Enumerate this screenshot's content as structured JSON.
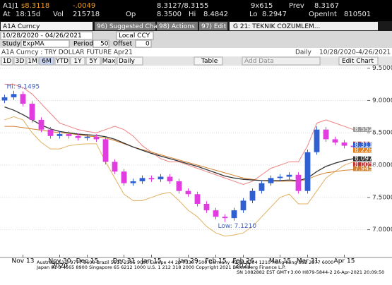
{
  "header": {
    "ticker": "A1J1",
    "last": "s8.3118",
    "change": "-.0049",
    "bid_ask": "8.3127/8.3155",
    "size": "9x615",
    "prev_label": "Prev",
    "prev": "8.3167",
    "time_label": "At",
    "time": "18:15d",
    "vol_label": "Vol",
    "vol": "215718",
    "open_label": "Op",
    "open": "8.3500",
    "hi_label": "Hi",
    "hi": "8.4842",
    "lo_label": "Lo",
    "lo": "8.2947",
    "oi_label": "OpenInt",
    "oi": "810501"
  },
  "toolbar": {
    "security": "A1A Curncy",
    "buttons": [
      "96) Suggested Charts",
      "98) Actions",
      "97) Edit"
    ],
    "template": "G 21: TEKNIK COZUMLEM...",
    "date_range": "10/28/2020 - 04/26/2021",
    "currency": "Local CCY",
    "study_label": "Study",
    "study": "ExpMA",
    "period_label": "Period",
    "period": "50",
    "offset_label": "Offset",
    "offset": "0"
  },
  "chart_header": {
    "description": "A1A Curncy : TRY DOLLAR FUTURE Apr21",
    "frequency": "Daily",
    "range": "10/28/2020-4/26/2021"
  },
  "chart_tools": {
    "periods": [
      "1D",
      "3D",
      "1M",
      "6M",
      "YTD",
      "1Y",
      "5Y",
      "Max"
    ],
    "frequency": "Daily",
    "table": "Table",
    "add_data": "Add Data",
    "edit": "Edit Chart"
  },
  "chart": {
    "type": "candlestick",
    "categories": [
      null,
      null,
      "Nov 13",
      null,
      null,
      null,
      "Nov 30",
      null,
      null,
      "Dec 15",
      null,
      null,
      null,
      "Dec 31",
      null,
      null,
      "Jan 15",
      null,
      null,
      null,
      "Jan 29",
      null,
      null,
      "Feb 15",
      null,
      null,
      "Feb 26",
      null,
      null,
      null,
      "Mar 15",
      null,
      null,
      "Mar 31",
      null,
      null,
      null,
      "Apr 15",
      null,
      null
    ],
    "year_categories": [
      null,
      null,
      null,
      null,
      null,
      null,
      "2020",
      null,
      null,
      null,
      null,
      null,
      null,
      null,
      null,
      null,
      null,
      null,
      null,
      null,
      null,
      null,
      null,
      null,
      null,
      null,
      "2021",
      null,
      null,
      null,
      null,
      null,
      null,
      null,
      null,
      null,
      null,
      null,
      null,
      null
    ],
    "open": [
      9.0,
      9.05,
      9.1,
      8.95,
      8.7,
      8.55,
      8.45,
      8.48,
      8.45,
      8.42,
      8.44,
      8.4,
      8.05,
      7.9,
      7.72,
      7.75,
      7.8,
      7.78,
      7.82,
      7.75,
      7.6,
      7.55,
      7.4,
      7.3,
      7.2,
      7.18,
      7.3,
      7.45,
      7.6,
      7.72,
      7.8,
      7.82,
      7.85,
      7.6,
      8.2,
      8.55,
      8.4,
      8.35,
      8.3,
      8.28
    ],
    "high": [
      9.09,
      9.1495,
      9.14,
      8.99,
      8.74,
      8.59,
      8.52,
      8.52,
      8.49,
      8.48,
      8.48,
      8.44,
      8.09,
      7.94,
      7.79,
      7.84,
      7.84,
      7.86,
      7.86,
      7.79,
      7.64,
      7.59,
      7.44,
      7.34,
      7.24,
      7.34,
      7.49,
      7.64,
      7.76,
      7.84,
      7.86,
      7.89,
      7.89,
      8.24,
      8.6,
      8.59,
      8.44,
      8.39,
      8.34,
      8.35
    ],
    "low": [
      8.96,
      9.01,
      8.91,
      8.66,
      8.51,
      8.41,
      8.41,
      8.41,
      8.38,
      8.38,
      8.36,
      8.01,
      7.86,
      7.68,
      7.68,
      7.71,
      7.74,
      7.74,
      7.71,
      7.56,
      7.51,
      7.36,
      7.26,
      7.16,
      7.121,
      7.14,
      7.26,
      7.41,
      7.56,
      7.68,
      7.76,
      7.78,
      7.56,
      7.56,
      8.16,
      8.36,
      8.31,
      8.26,
      8.24,
      8.24
    ],
    "close": [
      9.05,
      9.1,
      8.95,
      8.7,
      8.55,
      8.45,
      8.48,
      8.45,
      8.42,
      8.44,
      8.4,
      8.05,
      7.9,
      7.72,
      7.75,
      7.8,
      7.78,
      7.82,
      7.75,
      7.6,
      7.55,
      7.4,
      7.3,
      7.2,
      7.18,
      7.3,
      7.45,
      7.6,
      7.72,
      7.8,
      7.82,
      7.85,
      7.6,
      8.2,
      8.55,
      8.4,
      8.35,
      8.3,
      8.28,
      8.31
    ],
    "up_color": "#2f5fd0",
    "down_color": "#e03ce0",
    "lines": [
      {
        "color": "#f08080",
        "values": [
          9.25,
          9.25,
          9.2,
          9.1,
          8.95,
          8.8,
          8.65,
          8.6,
          8.55,
          8.52,
          8.5,
          8.55,
          8.6,
          8.55,
          8.45,
          8.3,
          8.2,
          8.1,
          8.05,
          8.05,
          8.0,
          7.95,
          7.9,
          7.85,
          7.8,
          7.75,
          7.7,
          7.75,
          7.85,
          7.95,
          8.0,
          8.05,
          8.05,
          8.3,
          8.65,
          8.7,
          8.65,
          8.6,
          8.55,
          8.55
        ]
      },
      {
        "color": "#e0b060",
        "values": [
          8.7,
          8.75,
          8.7,
          8.5,
          8.35,
          8.25,
          8.25,
          8.3,
          8.32,
          8.33,
          8.33,
          8.05,
          7.8,
          7.55,
          7.45,
          7.45,
          7.5,
          7.55,
          7.58,
          7.45,
          7.3,
          7.2,
          7.05,
          6.95,
          6.9,
          6.92,
          6.95,
          7.05,
          7.2,
          7.35,
          7.5,
          7.55,
          7.4,
          7.4,
          7.6,
          7.8,
          7.9,
          8.0,
          8.05,
          8.1
        ]
      },
      {
        "color": "#d08030",
        "values": [
          8.6,
          8.6,
          8.58,
          8.56,
          8.54,
          8.52,
          8.5,
          8.49,
          8.47,
          8.45,
          8.44,
          8.42,
          8.38,
          8.33,
          8.28,
          8.24,
          8.2,
          8.16,
          8.12,
          8.08,
          8.04,
          8.0,
          7.96,
          7.92,
          7.88,
          7.84,
          7.8,
          7.78,
          7.76,
          7.75,
          7.75,
          7.75,
          7.75,
          7.78,
          7.84,
          7.88,
          7.9,
          7.92,
          7.93,
          7.94
        ]
      },
      {
        "color": "#333333",
        "values": [
          8.9,
          8.85,
          8.78,
          8.7,
          8.62,
          8.56,
          8.52,
          8.5,
          8.48,
          8.47,
          8.46,
          8.44,
          8.4,
          8.34,
          8.28,
          8.23,
          8.18,
          8.14,
          8.1,
          8.06,
          8.02,
          7.98,
          7.93,
          7.88,
          7.83,
          7.8,
          7.78,
          7.77,
          7.76,
          7.76,
          7.76,
          7.77,
          7.76,
          7.8,
          7.9,
          7.98,
          8.03,
          8.07,
          8.1,
          8.12
        ]
      }
    ],
    "ylim": [
      6.57,
      9.54
    ],
    "yticks": [
      {
        "value": 7,
        "label": "7.0000"
      },
      {
        "value": 7.5,
        "label": "7.5000"
      },
      {
        "value": 8,
        "label": "8.0000"
      },
      {
        "value": 8.5,
        "label": "8.5000"
      },
      {
        "value": 9,
        "label": "9.0000"
      },
      {
        "value": 9.5,
        "label": "9.5000"
      }
    ],
    "grid": true,
    "annotations": [
      {
        "text": "Hi: 9.1495",
        "index": 1,
        "value": 9.1495
      },
      {
        "text": "Low: 7.1210",
        "index": 24,
        "value": 7.121
      }
    ],
    "price_tags": [
      {
        "value": 8.5525,
        "color": "#9a9a9a"
      },
      {
        "value": 8.3251,
        "color": "#d03030"
      },
      {
        "value": 8.3118,
        "color": "#2f5fd0"
      },
      {
        "value": 8.2285,
        "color": "#e08020"
      },
      {
        "value": 8.0976,
        "color": "#333333"
      },
      {
        "value": 8.0055,
        "color": "#c03030"
      },
      {
        "value": 7.9458,
        "color": "#d08030"
      }
    ]
  },
  "footer": {
    "lines": [
      "Australia 61 2 9777 8600 Brazil 5511 2395 9000 Europe 44 20 7330 7500 Germany 49 69 9204 1210 Hong Kong 852 2977 6000",
      "Japan 81 3 4565 8900    Singapore 65 6212 1000    U.S. 1 212 318 2000    Copyright 2021 Bloomberg Finance L.P.",
      "SN 1082882 EST  GMT+3:00 H879-5844-2 26-Apr-2021 20:09:50"
    ]
  }
}
